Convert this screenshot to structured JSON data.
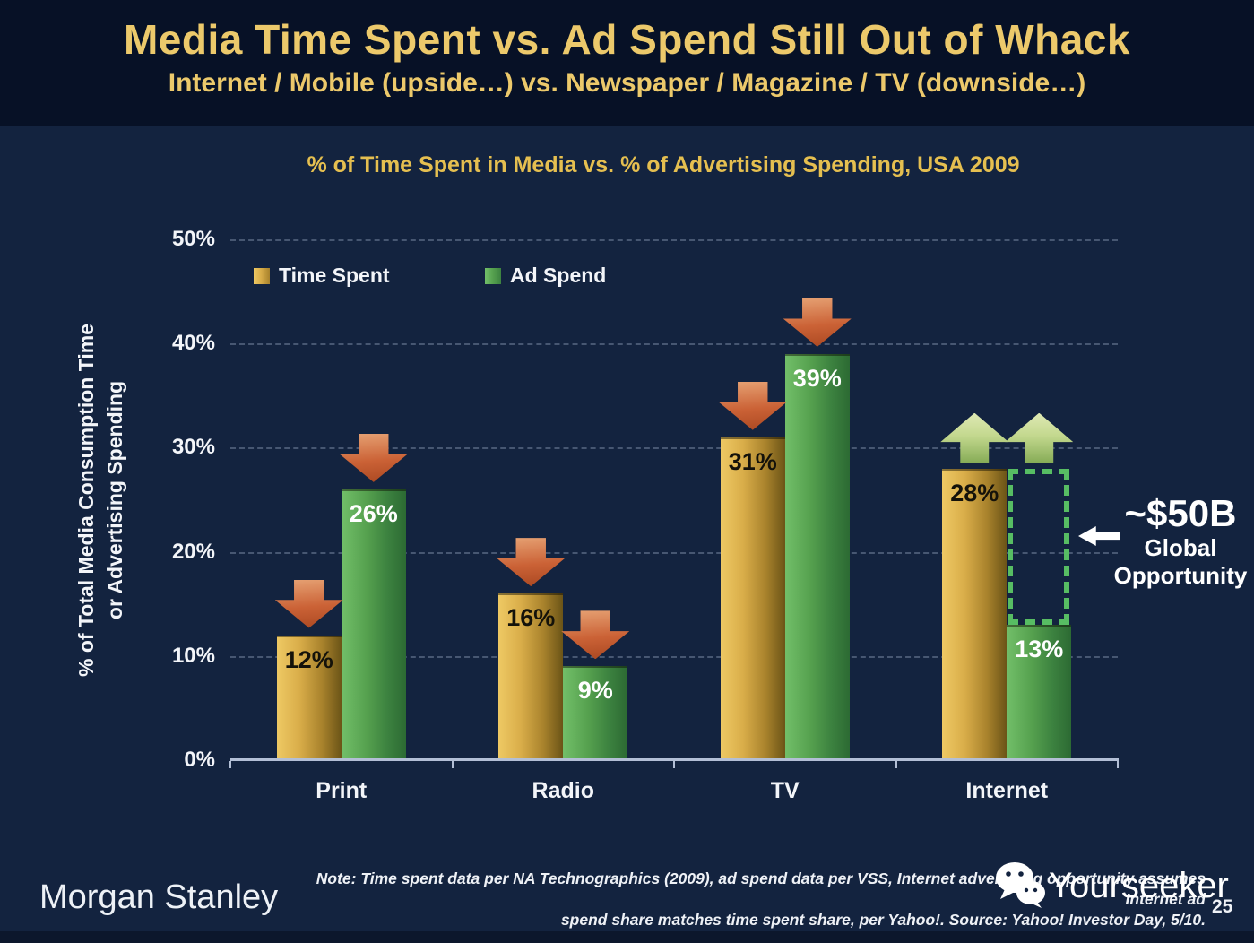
{
  "slide": {
    "title": "Media Time Spent vs. Ad Spend Still Out of Whack",
    "subtitle": "Internet / Mobile (upside…) vs. Newspaper / Magazine / TV (downside…)",
    "page_number": "25"
  },
  "chart_data": {
    "type": "bar",
    "title": "% of Time Spent in Media vs. % of Advertising Spending, USA 2009",
    "categories": [
      "Print",
      "Radio",
      "TV",
      "Internet"
    ],
    "series": [
      {
        "name": "Time Spent",
        "values": [
          12,
          16,
          31,
          28
        ],
        "labels": [
          "12%",
          "16%",
          "31%",
          "28%"
        ],
        "color": "#d9ab42"
      },
      {
        "name": "Ad Spend",
        "values": [
          26,
          9,
          39,
          13
        ],
        "labels": [
          "26%",
          "9%",
          "39%",
          "13%"
        ],
        "color": "#55a04e"
      }
    ],
    "trend_arrows": [
      [
        "down",
        "down",
        "down",
        "up"
      ],
      [
        "down",
        "down",
        "down",
        "up"
      ]
    ],
    "ylabel_line1": "% of Total Media Consumption Time",
    "ylabel_line2": "or Advertising Spending",
    "yticks": [
      "50%",
      "40%",
      "30%",
      "20%",
      "10%",
      "0%"
    ],
    "ylim": [
      0,
      50
    ],
    "grid": "horizontal dashed",
    "legend_position": "top-left inside plot"
  },
  "annotation": {
    "value": "~$50B",
    "line1": "Global",
    "line2": "Opportunity"
  },
  "footer": {
    "brand": "Morgan Stanley",
    "note_line1": "Note: Time spent data per NA Technographics (2009), ad spend data per VSS, Internet advertising opportunity assumes Internet ad",
    "note_line2": "spend share matches time spent share, per Yahoo!. Source: Yahoo! Investor Day, 5/10.",
    "watermark": "Yourseeker"
  },
  "colors": {
    "header_bg": "#071126",
    "body_bg": "#13233f",
    "title_gold": "#ecc96b",
    "chart_title_gold": "#e5bf50",
    "time_spent_gold": "#d9ab42",
    "ad_spend_green": "#55a04e",
    "down_arrow_red": "#cb6236",
    "up_arrow_green": "#c3d88e",
    "dashed_rect_green": "#57bd63",
    "axis_line": "#b3bfd6",
    "text_white": "#f3f5f9"
  }
}
